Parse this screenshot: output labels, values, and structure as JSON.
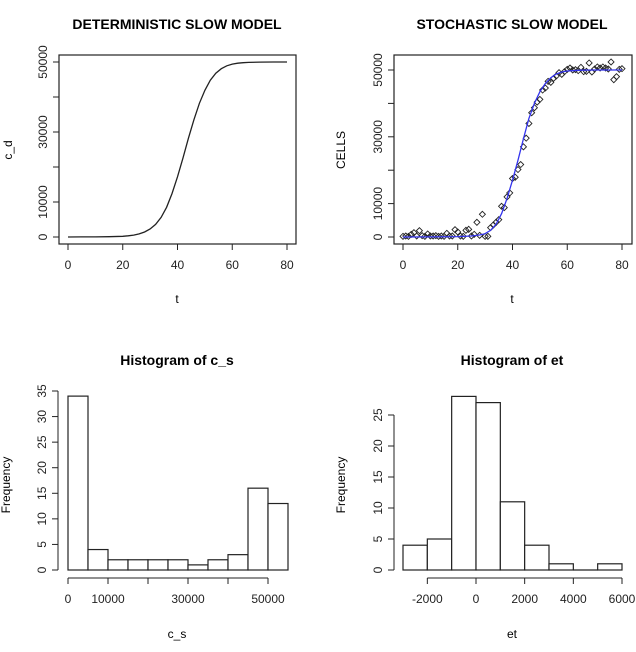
{
  "chart_data": [
    {
      "id": "deterministic",
      "type": "line",
      "title": "DETERMINISTIC SLOW MODEL",
      "xlabel": "t",
      "ylabel": "c_d",
      "xlim": [
        0,
        80
      ],
      "ylim": [
        0,
        50000
      ],
      "xticks": [
        0,
        20,
        40,
        60,
        80
      ],
      "xtick_labels": [
        "0",
        "20",
        "40",
        "60",
        "80"
      ],
      "yticks": [
        0,
        10000,
        20000,
        30000,
        40000,
        50000
      ],
      "ytick_labels": [
        "0",
        "10000",
        "",
        "30000",
        "",
        "50000"
      ],
      "series": [
        {
          "name": "c_d",
          "color": "#222222",
          "x": [
            0,
            5,
            10,
            15,
            20,
            22,
            24,
            26,
            28,
            30,
            32,
            34,
            36,
            38,
            40,
            42,
            44,
            46,
            48,
            50,
            52,
            54,
            56,
            58,
            60,
            62,
            64,
            66,
            70,
            75,
            80
          ],
          "y": [
            10,
            20,
            40,
            90,
            200,
            330,
            540,
            880,
            1420,
            2280,
            3600,
            5600,
            8500,
            12400,
            17200,
            22600,
            28200,
            33500,
            38200,
            41900,
            44800,
            46800,
            48100,
            48900,
            49400,
            49650,
            49800,
            49880,
            49960,
            49990,
            50000
          ]
        }
      ]
    },
    {
      "id": "stochastic",
      "type": "scatter",
      "title": "STOCHASTIC SLOW MODEL",
      "xlabel": "t",
      "ylabel": "CELLS",
      "xlim": [
        0,
        80
      ],
      "ylim": [
        0,
        50000
      ],
      "xticks": [
        0,
        20,
        40,
        60,
        80
      ],
      "xtick_labels": [
        "0",
        "20",
        "40",
        "60",
        "80"
      ],
      "yticks": [
        0,
        10000,
        20000,
        30000,
        40000,
        50000
      ],
      "ytick_labels": [
        "0",
        "10000",
        "",
        "30000",
        "",
        "50000"
      ],
      "points_color": "#222222",
      "fit_color": "#3333ee",
      "series": [
        {
          "name": "observed",
          "kind": "points",
          "x": [
            0,
            1,
            2,
            3,
            4,
            5,
            6,
            7,
            8,
            9,
            10,
            11,
            12,
            13,
            14,
            15,
            16,
            17,
            18,
            19,
            20,
            21,
            22,
            23,
            24,
            25,
            26,
            27,
            28,
            29,
            30,
            31,
            32,
            33,
            34,
            35,
            36,
            37,
            38,
            39,
            40,
            41,
            42,
            43,
            44,
            45,
            46,
            47,
            48,
            49,
            50,
            51,
            52,
            53,
            54,
            55,
            56,
            57,
            58,
            59,
            60,
            61,
            62,
            63,
            64,
            65,
            66,
            67,
            68,
            69,
            70,
            71,
            72,
            73,
            74,
            75,
            76,
            77,
            78,
            79,
            80
          ],
          "y": [
            200,
            300,
            200,
            800,
            1300,
            300,
            1900,
            400,
            200,
            900,
            300,
            300,
            400,
            200,
            300,
            200,
            1100,
            300,
            300,
            2200,
            1500,
            300,
            200,
            2000,
            2300,
            300,
            800,
            4400,
            500,
            6800,
            200,
            200,
            2800,
            3600,
            4400,
            5200,
            9200,
            8800,
            12000,
            13200,
            17500,
            17900,
            20200,
            21700,
            27000,
            29600,
            34000,
            37200,
            38700,
            40400,
            41200,
            44000,
            44600,
            46600,
            46300,
            47500,
            48200,
            49200,
            48700,
            49500,
            50200,
            50600,
            50000,
            50100,
            49800,
            50800,
            49500,
            49600,
            52100,
            49400,
            50300,
            50900,
            50600,
            50900,
            50600,
            50300,
            52400,
            47100,
            48000,
            50200,
            50400
          ]
        },
        {
          "name": "fit",
          "kind": "line",
          "x": [
            0,
            10,
            20,
            25,
            28,
            30,
            32,
            34,
            36,
            38,
            40,
            42,
            44,
            46,
            48,
            50,
            52,
            54,
            56,
            58,
            60,
            65,
            70,
            80
          ],
          "y": [
            0,
            30,
            120,
            300,
            600,
            1000,
            2000,
            3800,
            7000,
            11500,
            17000,
            23000,
            29500,
            35500,
            40000,
            43500,
            46000,
            47700,
            48800,
            49400,
            49700,
            49950,
            50000,
            50000
          ]
        }
      ]
    },
    {
      "id": "hist_cs",
      "type": "bar",
      "title": "Histogram of c_s",
      "xlabel": "c_s",
      "ylabel": "Frequency",
      "bin_edges": [
        0,
        5000,
        10000,
        15000,
        20000,
        25000,
        30000,
        35000,
        40000,
        45000,
        50000,
        55000
      ],
      "values": [
        34,
        4,
        2,
        2,
        2,
        2,
        1,
        2,
        3,
        16,
        13
      ],
      "xlim": [
        0,
        55000
      ],
      "ylim": [
        0,
        35
      ],
      "xticks": [
        0,
        10000,
        20000,
        30000,
        40000,
        50000
      ],
      "xtick_labels": [
        "0",
        "10000",
        "",
        "30000",
        "",
        "50000"
      ],
      "yticks": [
        0,
        5,
        10,
        15,
        20,
        25,
        30,
        35
      ],
      "ytick_labels": [
        "0",
        "5",
        "10",
        "15",
        "20",
        "25",
        "30",
        "35"
      ]
    },
    {
      "id": "hist_et",
      "type": "bar",
      "title": "Histogram of et",
      "xlabel": "et",
      "ylabel": "Frequency",
      "bin_edges": [
        -3000,
        -2000,
        -1000,
        0,
        1000,
        2000,
        3000,
        4000,
        5000,
        6000
      ],
      "values": [
        4,
        5,
        28,
        27,
        11,
        4,
        1,
        0,
        1
      ],
      "xlim": [
        -3000,
        6000
      ],
      "ylim": [
        0,
        25
      ],
      "xticks": [
        -2000,
        0,
        2000,
        4000,
        6000
      ],
      "xtick_labels": [
        "-2000",
        "0",
        "2000",
        "4000",
        "6000"
      ],
      "yticks": [
        0,
        5,
        10,
        15,
        20,
        25
      ],
      "ytick_labels": [
        "0",
        "5",
        "10",
        "15",
        "20",
        "25"
      ]
    }
  ]
}
